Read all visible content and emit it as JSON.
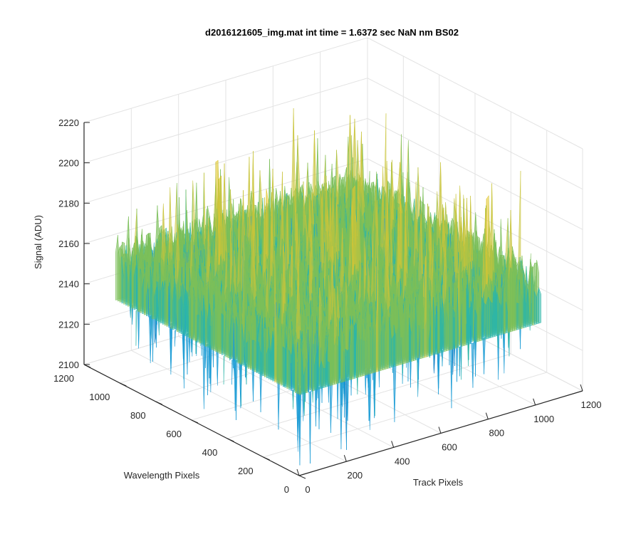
{
  "chart_data": {
    "type": "surface",
    "title": "d2016121605_img.mat int time = 1.6372 sec  NaN nm BS02",
    "xlabel": "Track Pixels",
    "ylabel": "Wavelength Pixels",
    "zlabel": "Signal (ADU)",
    "xlim": [
      0,
      1200
    ],
    "ylim": [
      0,
      1200
    ],
    "zlim": [
      2100,
      2220
    ],
    "xticks": [
      "0",
      "200",
      "400",
      "600",
      "800",
      "1000",
      "1200"
    ],
    "yticks": [
      "0",
      "200",
      "400",
      "600",
      "800",
      "1000",
      "1200"
    ],
    "zticks": [
      "2100",
      "2120",
      "2140",
      "2160",
      "2180",
      "2200",
      "2220"
    ],
    "surface_extent": {
      "x": [
        0,
        1024
      ],
      "y": [
        0,
        1024
      ]
    },
    "signal_mean": 2160,
    "signal_range": [
      2100,
      2215
    ],
    "grid": true,
    "colormap": "parula",
    "colormap_colors": [
      "#0072BD",
      "#1E9DD6",
      "#2DB6A8",
      "#7BBF5A",
      "#C9C43A",
      "#E8C72D"
    ]
  }
}
